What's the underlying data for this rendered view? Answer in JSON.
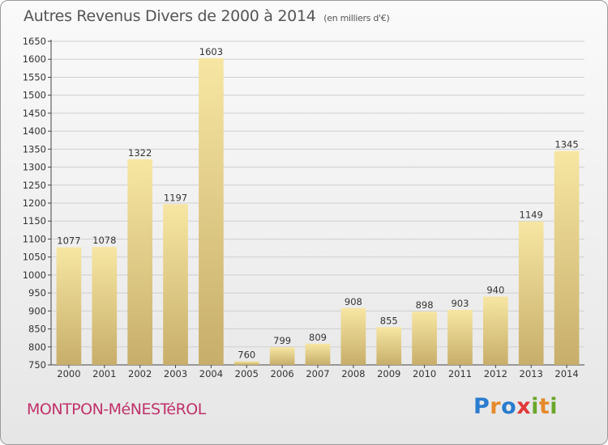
{
  "header": {
    "title": "Autres Revenus Divers de 2000 à 2014",
    "subtitle": "(en milliers d'€)"
  },
  "footer": {
    "commune": "MONTPON-MéNESTéROL",
    "brand_letters": [
      "P",
      "r",
      "o",
      "x",
      "i",
      "t",
      "i"
    ]
  },
  "colors": {
    "bar_top": "#f7e6a3",
    "bar_bottom": "#c7ae6a",
    "commune": "#c0326b",
    "brand": [
      "#2a7ccf",
      "#e6892a",
      "#2a7ccf",
      "#e03a3a",
      "#6aa62a",
      "#e6892a",
      "#6aa62a"
    ]
  },
  "chart_data": {
    "type": "bar",
    "title": "Autres Revenus Divers de 2000 à 2014",
    "xlabel": "",
    "ylabel": "",
    "ylim": [
      750,
      1650
    ],
    "yticks": [
      750,
      800,
      850,
      900,
      950,
      1000,
      1050,
      1100,
      1150,
      1200,
      1250,
      1300,
      1350,
      1400,
      1450,
      1500,
      1550,
      1600,
      1650
    ],
    "grid": true,
    "categories": [
      "2000",
      "2001",
      "2002",
      "2003",
      "2004",
      "2005",
      "2006",
      "2007",
      "2008",
      "2009",
      "2010",
      "2011",
      "2012",
      "2013",
      "2014"
    ],
    "values": [
      1077,
      1078,
      1322,
      1197,
      1603,
      760,
      799,
      809,
      908,
      855,
      898,
      903,
      940,
      1149,
      1345
    ]
  }
}
